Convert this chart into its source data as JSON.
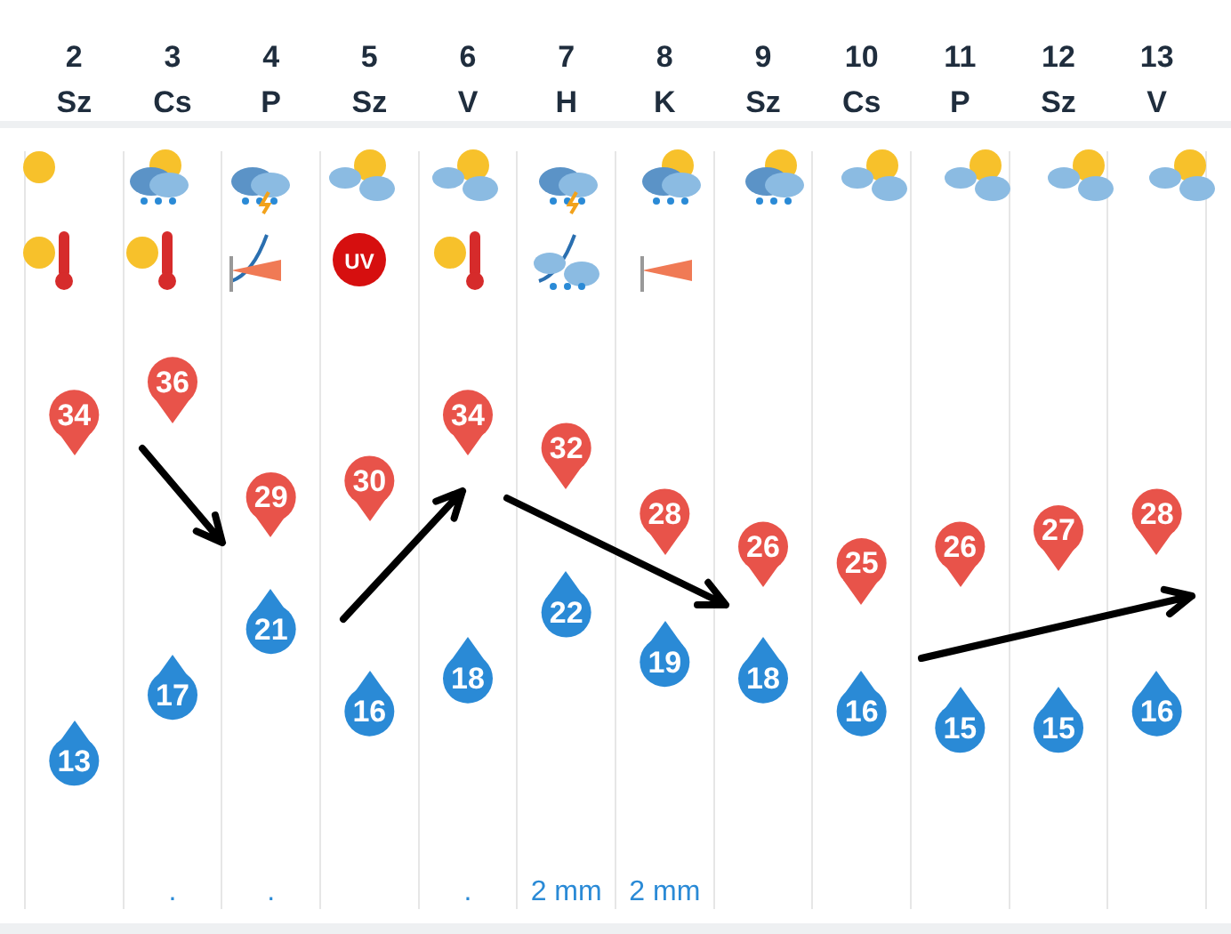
{
  "chart_data": {
    "type": "scatter",
    "categories": [
      "2 Sz",
      "3 Cs",
      "4 P",
      "5 Sz",
      "6 V",
      "7 H",
      "8 K",
      "9 Sz",
      "10 Cs",
      "11 P",
      "12 Sz",
      "13 V"
    ],
    "series": [
      {
        "color": "#e8534a",
        "values": [
          34,
          36,
          29,
          30,
          34,
          32,
          28,
          26,
          25,
          26,
          27,
          28
        ]
      },
      {
        "color": "#2a8ad6",
        "values": [
          13,
          17,
          21,
          16,
          18,
          22,
          19,
          18,
          16,
          15,
          15,
          16
        ]
      }
    ],
    "ylim": [
      4,
      50
    ],
    "tick_labels": "x",
    "grid": "x",
    "marker": "circle",
    "data_labels": true,
    "annotations": [
      ".",
      ".",
      ".",
      "2 mm",
      "2 mm",
      "UV"
    ]
  }
}
